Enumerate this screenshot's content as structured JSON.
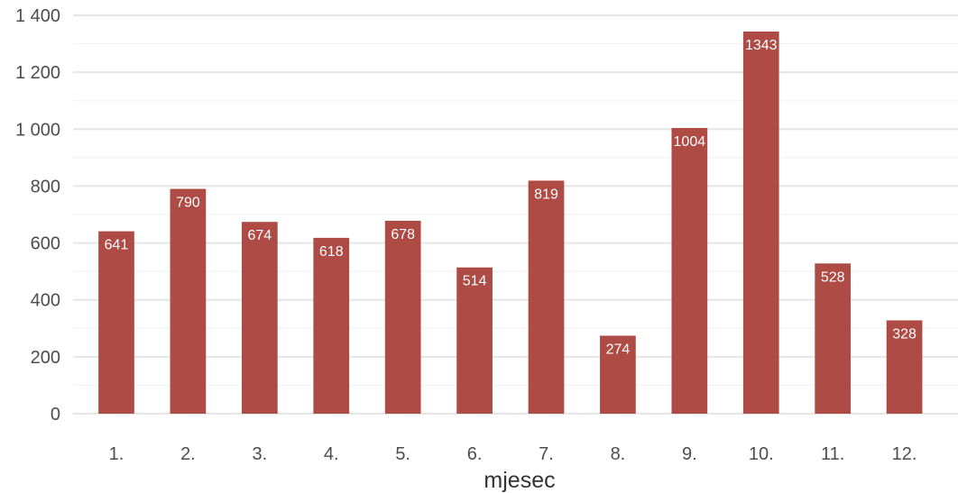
{
  "chart_data": {
    "type": "bar",
    "title": "",
    "xlabel": "mjesec",
    "ylabel": "",
    "categories": [
      "1.",
      "2.",
      "3.",
      "4.",
      "5.",
      "6.",
      "7.",
      "8.",
      "9.",
      "10.",
      "11.",
      "12."
    ],
    "values": [
      641,
      790,
      674,
      618,
      678,
      514,
      819,
      274,
      1004,
      1343,
      528,
      328
    ],
    "data_labels": [
      "641",
      "790",
      "674",
      "618",
      "678",
      "514",
      "819",
      "274",
      "1004",
      "1343",
      "528",
      "328"
    ],
    "ylim": [
      0,
      1400
    ],
    "y_ticks": [
      0,
      200,
      400,
      600,
      800,
      1000,
      1200,
      1400
    ],
    "y_tick_labels": [
      "0",
      "200",
      "400",
      "600",
      "800",
      "1 000",
      "1 200",
      "1 400"
    ],
    "grid": true,
    "minor_grid": true,
    "legend": "none",
    "colors": {
      "bar": "#ae4b45",
      "grid_major": "#e6e6e6",
      "grid_minor": "#f2f2f2",
      "tick_text": "#4d4d4d",
      "axis_title": "#333333",
      "data_label": "#ffffff"
    }
  }
}
